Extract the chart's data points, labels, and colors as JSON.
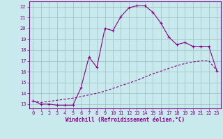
{
  "xlabel": "Windchill (Refroidissement éolien,°C)",
  "bg_color": "#c8eaed",
  "grid_color": "#9bbfc2",
  "line_color": "#880088",
  "x_ticks": [
    0,
    1,
    2,
    3,
    4,
    5,
    6,
    7,
    8,
    9,
    10,
    11,
    12,
    13,
    14,
    15,
    16,
    17,
    18,
    19,
    20,
    21,
    22,
    23
  ],
  "y_ticks": [
    13,
    14,
    15,
    16,
    17,
    18,
    19,
    20,
    21,
    22
  ],
  "ylim": [
    12.6,
    22.5
  ],
  "xlim": [
    -0.5,
    23.5
  ],
  "line1_x": [
    0,
    1,
    2,
    3,
    4,
    5,
    6,
    7,
    8,
    9,
    10,
    11,
    12,
    13,
    14,
    15,
    16,
    17,
    18,
    19,
    20,
    21,
    22,
    23
  ],
  "line1_y": [
    13.3,
    13.0,
    13.0,
    12.9,
    12.9,
    12.9,
    14.5,
    17.35,
    16.4,
    20.0,
    19.8,
    21.1,
    21.9,
    22.1,
    22.1,
    21.5,
    20.5,
    19.2,
    18.5,
    18.7,
    18.35,
    18.35,
    18.35,
    16.1
  ],
  "line2_x": [
    0,
    1,
    2,
    3,
    4,
    5,
    6,
    7,
    8,
    9,
    10,
    11,
    12,
    13,
    14,
    15,
    16,
    17,
    18,
    19,
    20,
    21,
    22,
    23
  ],
  "line2_y": [
    13.3,
    13.15,
    13.25,
    13.35,
    13.45,
    13.55,
    13.7,
    13.85,
    14.0,
    14.2,
    14.45,
    14.7,
    14.95,
    15.2,
    15.5,
    15.8,
    16.05,
    16.3,
    16.55,
    16.75,
    16.9,
    17.0,
    17.0,
    16.1
  ]
}
